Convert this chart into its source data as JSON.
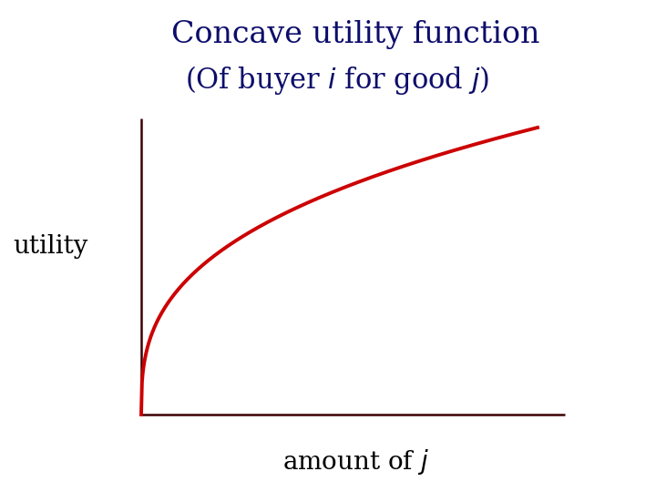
{
  "title_line1": "Concave utility function",
  "title_line2": "(Of buyer $i$ for good $j$)",
  "xlabel": "amount of $j$",
  "ylabel": "utility",
  "title_color": "#0d0d6b",
  "axis_color": "#3d0000",
  "curve_color": "#cc0000",
  "background_color": "#ffffff",
  "curve_linewidth": 2.8,
  "axis_linewidth": 1.8,
  "title_fontsize": 24,
  "subtitle_fontsize": 22,
  "label_fontsize": 20
}
